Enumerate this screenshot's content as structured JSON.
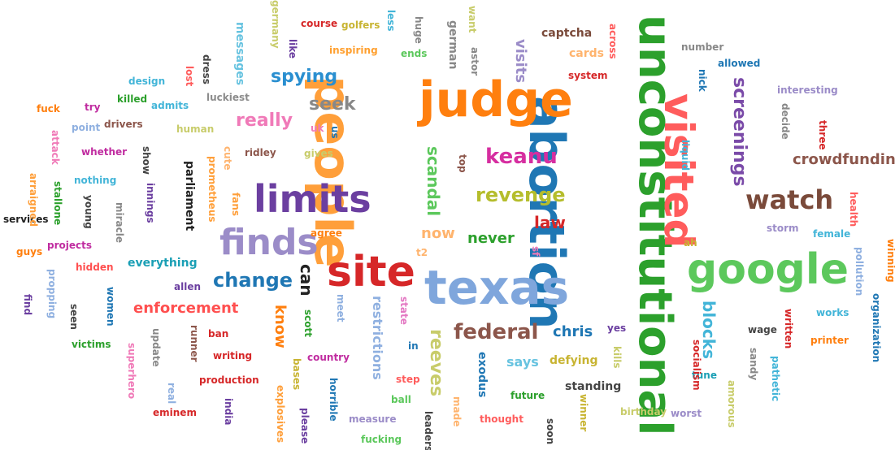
{
  "words": [
    {
      "text": "unconstitutional",
      "color": "#2ca02c",
      "orientation": "vertical"
    },
    {
      "text": "abortion",
      "color": "#1f77b4",
      "orientation": "vertical"
    },
    {
      "text": "people",
      "color": "#ff9f3a",
      "orientation": "vertical"
    },
    {
      "text": "judge",
      "color": "#ff7f0e",
      "orientation": "horizontal"
    },
    {
      "text": "texas",
      "color": "#7fa6dc",
      "orientation": "horizontal"
    },
    {
      "text": "site",
      "color": "#d62728",
      "orientation": "horizontal"
    },
    {
      "text": "limits",
      "color": "#6b3fa0",
      "orientation": "horizontal"
    },
    {
      "text": "google",
      "color": "#5cc85c",
      "orientation": "horizontal"
    },
    {
      "text": "visited",
      "color": "#ff5c5c",
      "orientation": "vertical"
    },
    {
      "text": "finds",
      "color": "#9b8cc8",
      "orientation": "horizontal"
    },
    {
      "text": "watch",
      "color": "#7a4a3a",
      "orientation": "horizontal"
    },
    {
      "text": "keanu",
      "color": "#d62ea0",
      "orientation": "horizontal"
    },
    {
      "text": "revenge",
      "color": "#b5bd2c",
      "orientation": "horizontal"
    },
    {
      "text": "federal",
      "color": "#8c564b",
      "orientation": "horizontal"
    },
    {
      "text": "change",
      "color": "#1f77b4",
      "orientation": "horizontal"
    },
    {
      "text": "enforcement",
      "color": "#ff4f4f",
      "orientation": "horizontal"
    },
    {
      "text": "screenings",
      "color": "#7a4aa8",
      "orientation": "vertical"
    },
    {
      "text": "blocks",
      "color": "#43b5d8",
      "orientation": "vertical"
    },
    {
      "text": "crowdfunding",
      "color": "#8c564b",
      "orientation": "horizontal"
    },
    {
      "text": "spying",
      "color": "#2a8fd0",
      "orientation": "horizontal"
    },
    {
      "text": "really",
      "color": "#f07ab8",
      "orientation": "horizontal"
    },
    {
      "text": "seek",
      "color": "#888888",
      "orientation": "horizontal"
    },
    {
      "text": "scandal",
      "color": "#5cc85c",
      "orientation": "vertical"
    },
    {
      "text": "law",
      "color": "#d62728",
      "orientation": "horizontal"
    },
    {
      "text": "now",
      "color": "#ffb46e",
      "orientation": "horizontal"
    },
    {
      "text": "never",
      "color": "#2ca02c",
      "orientation": "horizontal"
    },
    {
      "text": "can",
      "color": "#222222",
      "orientation": "vertical"
    },
    {
      "text": "know",
      "color": "#ff7f0e",
      "orientation": "vertical"
    },
    {
      "text": "reeves",
      "color": "#c8cc6a",
      "orientation": "vertical"
    },
    {
      "text": "chris",
      "color": "#1f77b4",
      "orientation": "horizontal"
    },
    {
      "text": "says",
      "color": "#67c3e0",
      "orientation": "horizontal"
    },
    {
      "text": "defying",
      "color": "#c8b432",
      "orientation": "horizontal"
    },
    {
      "text": "standing",
      "color": "#444444",
      "orientation": "horizontal"
    },
    {
      "text": "exodus",
      "color": "#1f77b4",
      "orientation": "vertical"
    },
    {
      "text": "restrictions",
      "color": "#8fb0e0",
      "orientation": "vertical"
    },
    {
      "text": "everything",
      "color": "#1a9fb5",
      "orientation": "horizontal"
    },
    {
      "text": "projects",
      "color": "#c02ca0",
      "orientation": "horizontal"
    },
    {
      "text": "hidden",
      "color": "#ff4f4f",
      "orientation": "horizontal"
    },
    {
      "text": "captcha",
      "color": "#7a4a3a",
      "orientation": "horizontal"
    },
    {
      "text": "inspiring",
      "color": "#ffa030",
      "orientation": "horizontal"
    },
    {
      "text": "visits",
      "color": "#9b8cc8",
      "orientation": "vertical"
    },
    {
      "text": "german",
      "color": "#888888",
      "orientation": "vertical"
    },
    {
      "text": "cards",
      "color": "#ffb46e",
      "orientation": "horizontal"
    },
    {
      "text": "system",
      "color": "#d62728",
      "orientation": "horizontal"
    },
    {
      "text": "messages",
      "color": "#67c3e0",
      "orientation": "vertical"
    },
    {
      "text": "luckiest",
      "color": "#8c8c8c",
      "orientation": "horizontal"
    },
    {
      "text": "gives",
      "color": "#c8cc6a",
      "orientation": "horizontal"
    },
    {
      "text": "ridley",
      "color": "#8c564b",
      "orientation": "horizontal"
    },
    {
      "text": "parliament",
      "color": "#222222",
      "orientation": "vertical"
    },
    {
      "text": "prometheus",
      "color": "#ff9f3a",
      "orientation": "vertical"
    },
    {
      "text": "innings",
      "color": "#6b3fa0",
      "orientation": "vertical"
    },
    {
      "text": "show",
      "color": "#444444",
      "orientation": "vertical"
    },
    {
      "text": "fans",
      "color": "#ff9f3a",
      "orientation": "vertical"
    },
    {
      "text": "cute",
      "color": "#ffb46e",
      "orientation": "vertical"
    },
    {
      "text": "agree",
      "color": "#ff7f0e",
      "orientation": "horizontal"
    },
    {
      "text": "human",
      "color": "#c8cc6a",
      "orientation": "horizontal"
    },
    {
      "text": "admits",
      "color": "#43b5d8",
      "orientation": "horizontal"
    },
    {
      "text": "drivers",
      "color": "#8c564b",
      "orientation": "horizontal"
    },
    {
      "text": "nothing",
      "color": "#43b5d8",
      "orientation": "horizontal"
    },
    {
      "text": "miracle",
      "color": "#888888",
      "orientation": "vertical"
    },
    {
      "text": "young",
      "color": "#444444",
      "orientation": "vertical"
    },
    {
      "text": "stallone",
      "color": "#2ca02c",
      "orientation": "vertical"
    },
    {
      "text": "women",
      "color": "#1f77b4",
      "orientation": "vertical"
    },
    {
      "text": "allen",
      "color": "#6b3fa0",
      "orientation": "horizontal"
    },
    {
      "text": "meet",
      "color": "#8fb0e0",
      "orientation": "vertical"
    },
    {
      "text": "scott",
      "color": "#2ca02c",
      "orientation": "vertical"
    },
    {
      "text": "ban",
      "color": "#d62728",
      "orientation": "horizontal"
    },
    {
      "text": "runner",
      "color": "#8c564b",
      "orientation": "vertical"
    },
    {
      "text": "update",
      "color": "#888888",
      "orientation": "vertical"
    },
    {
      "text": "country",
      "color": "#c02ca0",
      "orientation": "horizontal"
    },
    {
      "text": "writing",
      "color": "#d62728",
      "orientation": "horizontal"
    },
    {
      "text": "production",
      "color": "#d62728",
      "orientation": "horizontal"
    },
    {
      "text": "state",
      "color": "#e377c2",
      "orientation": "vertical"
    },
    {
      "text": "step",
      "color": "#ff5c5c",
      "orientation": "horizontal"
    },
    {
      "text": "ball",
      "color": "#5cc85c",
      "orientation": "horizontal"
    },
    {
      "text": "future",
      "color": "#2ca02c",
      "orientation": "horizontal"
    },
    {
      "text": "made",
      "color": "#ffb46e",
      "orientation": "vertical"
    },
    {
      "text": "winner",
      "color": "#c8b432",
      "orientation": "vertical"
    },
    {
      "text": "thought",
      "color": "#ff5c5c",
      "orientation": "horizontal"
    },
    {
      "text": "measure",
      "color": "#9b8cc8",
      "orientation": "horizontal"
    },
    {
      "text": "fucking",
      "color": "#5cc85c",
      "orientation": "horizontal"
    },
    {
      "text": "eminem",
      "color": "#d62728",
      "orientation": "horizontal"
    },
    {
      "text": "victims",
      "color": "#2ca02c",
      "orientation": "horizontal"
    },
    {
      "text": "superhero",
      "color": "#f07ab8",
      "orientation": "vertical"
    },
    {
      "text": "birthday",
      "color": "#c8cc6a",
      "orientation": "horizontal"
    },
    {
      "text": "worst",
      "color": "#9b8cc8",
      "orientation": "horizontal"
    },
    {
      "text": "printer",
      "color": "#ff7f0e",
      "orientation": "horizontal"
    },
    {
      "text": "works",
      "color": "#43b5d8",
      "orientation": "horizontal"
    },
    {
      "text": "storm",
      "color": "#9b8cc8",
      "orientation": "horizontal"
    },
    {
      "text": "female",
      "color": "#43b5d8",
      "orientation": "horizontal"
    },
    {
      "text": "wage",
      "color": "#444444",
      "orientation": "horizontal"
    },
    {
      "text": "written",
      "color": "#d62728",
      "orientation": "vertical"
    },
    {
      "text": "tune",
      "color": "#1a9fb5",
      "orientation": "horizontal"
    },
    {
      "text": "socialism",
      "color": "#d62728",
      "orientation": "vertical"
    },
    {
      "text": "allowed",
      "color": "#1f77b4",
      "orientation": "horizontal"
    },
    {
      "text": "number",
      "color": "#888888",
      "orientation": "horizontal"
    },
    {
      "text": "interesting",
      "color": "#9b8cc8",
      "orientation": "horizontal"
    },
    {
      "text": "nick",
      "color": "#1f77b4",
      "orientation": "vertical"
    },
    {
      "text": "liquid",
      "color": "#43b5d8",
      "orientation": "vertical"
    },
    {
      "text": "design",
      "color": "#43b5d8",
      "orientation": "horizontal"
    },
    {
      "text": "killed",
      "color": "#2ca02c",
      "orientation": "horizontal"
    },
    {
      "text": "fuck",
      "color": "#ff7f0e",
      "orientation": "horizontal"
    },
    {
      "text": "try",
      "color": "#c02ca0",
      "orientation": "horizontal"
    },
    {
      "text": "point",
      "color": "#8fb0e0",
      "orientation": "horizontal"
    },
    {
      "text": "whether",
      "color": "#c02ca0",
      "orientation": "horizontal"
    },
    {
      "text": "services",
      "color": "#222222",
      "orientation": "horizontal"
    },
    {
      "text": "guys",
      "color": "#ff7f0e",
      "orientation": "horizontal"
    },
    {
      "text": "course",
      "color": "#d62728",
      "orientation": "horizontal"
    },
    {
      "text": "golfers",
      "color": "#c8b432",
      "orientation": "horizontal"
    },
    {
      "text": "ends",
      "color": "#5cc85c",
      "orientation": "horizontal"
    },
    {
      "text": "like",
      "color": "#6b3fa0",
      "orientation": "vertical"
    },
    {
      "text": "germany",
      "color": "#c8cc6a",
      "orientation": "vertical"
    },
    {
      "text": "less",
      "color": "#43b5d8",
      "orientation": "vertical"
    },
    {
      "text": "huge",
      "color": "#888888",
      "orientation": "vertical"
    },
    {
      "text": "want",
      "color": "#c8cc6a",
      "orientation": "vertical"
    },
    {
      "text": "astor",
      "color": "#888888",
      "orientation": "vertical"
    },
    {
      "text": "across",
      "color": "#ff5c5c",
      "orientation": "vertical"
    },
    {
      "text": "lost",
      "color": "#ff5c5c",
      "orientation": "vertical"
    },
    {
      "text": "dress",
      "color": "#444444",
      "orientation": "vertical"
    },
    {
      "text": "top",
      "color": "#8c564b",
      "orientation": "vertical"
    },
    {
      "text": "uk",
      "color": "#f07ab8",
      "orientation": "horizontal"
    },
    {
      "text": "us",
      "color": "#1f77b4",
      "orientation": "vertical"
    },
    {
      "text": "attack",
      "color": "#f07ab8",
      "orientation": "vertical"
    },
    {
      "text": "arraigned",
      "color": "#ff9f3a",
      "orientation": "vertical"
    },
    {
      "text": "propping",
      "color": "#8fb0e0",
      "orientation": "vertical"
    },
    {
      "text": "find",
      "color": "#6b3fa0",
      "orientation": "vertical"
    },
    {
      "text": "seen",
      "color": "#444444",
      "orientation": "vertical"
    },
    {
      "text": "real",
      "color": "#8fb0e0",
      "orientation": "vertical"
    },
    {
      "text": "india",
      "color": "#6b3fa0",
      "orientation": "vertical"
    },
    {
      "text": "bases",
      "color": "#c8b432",
      "orientation": "vertical"
    },
    {
      "text": "explosives",
      "color": "#ff9f3a",
      "orientation": "vertical"
    },
    {
      "text": "please",
      "color": "#6b3fa0",
      "orientation": "vertical"
    },
    {
      "text": "horrible",
      "color": "#1f77b4",
      "orientation": "vertical"
    },
    {
      "text": "leaders",
      "color": "#444444",
      "orientation": "vertical"
    },
    {
      "text": "soon",
      "color": "#444444",
      "orientation": "vertical"
    },
    {
      "text": "yes",
      "color": "#6b3fa0",
      "orientation": "horizontal"
    },
    {
      "text": "kills",
      "color": "#c8cc6a",
      "orientation": "vertical"
    },
    {
      "text": "t2",
      "color": "#ffb46e",
      "orientation": "horizontal"
    },
    {
      "text": "sf",
      "color": "#f07ab8",
      "orientation": "vertical"
    },
    {
      "text": "in",
      "color": "#1f77b4",
      "orientation": "horizontal"
    },
    {
      "text": "ah",
      "color": "#c8b432",
      "orientation": "horizontal"
    },
    {
      "text": "sandy",
      "color": "#888888",
      "orientation": "vertical"
    },
    {
      "text": "pathetic",
      "color": "#43b5d8",
      "orientation": "vertical"
    },
    {
      "text": "amorous",
      "color": "#c8cc6a",
      "orientation": "vertical"
    },
    {
      "text": "decide",
      "color": "#888888",
      "orientation": "vertical"
    },
    {
      "text": "three",
      "color": "#d62728",
      "orientation": "vertical"
    },
    {
      "text": "health",
      "color": "#ff5c5c",
      "orientation": "vertical"
    },
    {
      "text": "pollution",
      "color": "#8fb0e0",
      "orientation": "vertical"
    },
    {
      "text": "winning",
      "color": "#ff7f0e",
      "orientation": "vertical"
    },
    {
      "text": "organization",
      "color": "#1f77b4",
      "orientation": "vertical"
    }
  ]
}
